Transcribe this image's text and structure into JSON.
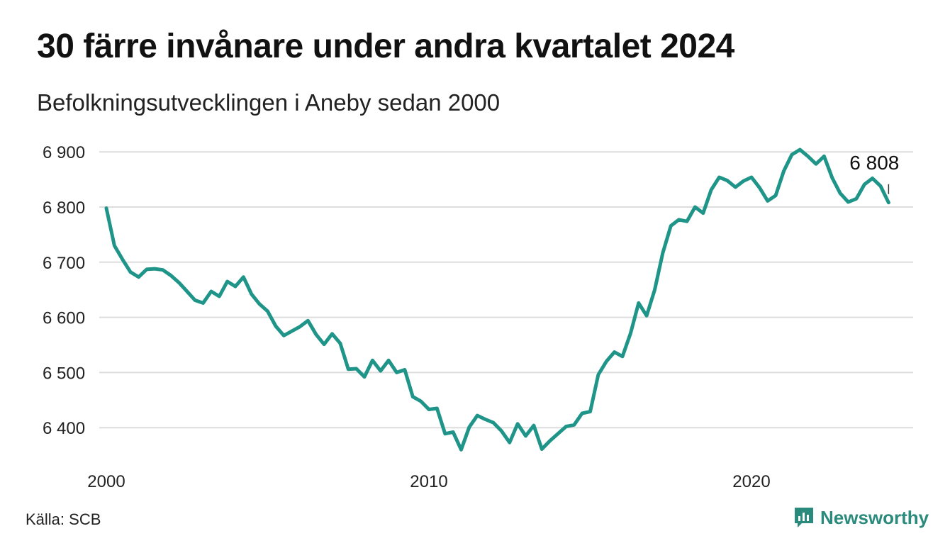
{
  "header": {
    "title": "30 färre invånare under andra kvartalet 2024",
    "subtitle": "Befolkningsutvecklingen i Aneby sedan 2000"
  },
  "footer": {
    "source": "Källa: SCB",
    "brand": "Newsworthy"
  },
  "colors": {
    "line": "#1f9488",
    "grid": "#dddddd",
    "brand": "#2a8a7c"
  },
  "chart_data": {
    "type": "line",
    "title": "30 färre invånare under andra kvartalet 2024",
    "subtitle": "Befolkningsutvecklingen i Aneby sedan 2000",
    "xlabel": "",
    "ylabel": "",
    "xlim": [
      2000,
      2024.25
    ],
    "ylim": [
      6345,
      6920
    ],
    "grid": true,
    "x_ticks": [
      2000,
      2010,
      2020
    ],
    "x_tick_labels": [
      "2000",
      "2010",
      "2020"
    ],
    "y_ticks": [
      6400,
      6500,
      6600,
      6700,
      6800,
      6900
    ],
    "y_tick_labels": [
      "6 400",
      "6 500",
      "6 600",
      "6 700",
      "6 800",
      "6 900"
    ],
    "end_label": "6 808",
    "series": [
      {
        "x": [
          2000,
          2000.25,
          2000.5,
          2000.75,
          2001,
          2001.25,
          2001.5,
          2001.75,
          2002,
          2002.25,
          2002.5,
          2002.75,
          2003,
          2003.25,
          2003.5,
          2003.75,
          2004,
          2004.25,
          2004.5,
          2004.75,
          2005,
          2005.25,
          2005.5,
          2005.75,
          2006,
          2006.25,
          2006.5,
          2006.75,
          2007,
          2007.25,
          2007.5,
          2007.75,
          2008,
          2008.25,
          2008.5,
          2008.75,
          2009,
          2009.25,
          2009.5,
          2009.75,
          2010,
          2010.25,
          2010.5,
          2010.75,
          2011,
          2011.25,
          2011.5,
          2011.75,
          2012,
          2012.25,
          2012.5,
          2012.75,
          2013,
          2013.25,
          2013.5,
          2013.75,
          2014,
          2014.25,
          2014.5,
          2014.75,
          2015,
          2015.25,
          2015.5,
          2015.75,
          2016,
          2016.25,
          2016.5,
          2016.75,
          2017,
          2017.25,
          2017.5,
          2017.75,
          2018,
          2018.25,
          2018.5,
          2018.75,
          2019,
          2019.25,
          2019.5,
          2019.75,
          2020,
          2020.25,
          2020.5,
          2020.75,
          2021,
          2021.25,
          2021.5,
          2021.75,
          2022,
          2022.25,
          2022.5,
          2022.75,
          2023,
          2023.25,
          2023.5,
          2023.75,
          2024,
          2024.25
        ],
        "values": [
          6798,
          6730,
          6705,
          6682,
          6673,
          6687,
          6688,
          6686,
          6676,
          6663,
          6647,
          6631,
          6626,
          6647,
          6638,
          6665,
          6656,
          6673,
          6642,
          6624,
          6611,
          6584,
          6567,
          6575,
          6583,
          6594,
          6569,
          6551,
          6570,
          6553,
          6506,
          6507,
          6492,
          6522,
          6503,
          6522,
          6500,
          6505,
          6456,
          6448,
          6433,
          6435,
          6389,
          6392,
          6360,
          6401,
          6422,
          6415,
          6409,
          6394,
          6373,
          6407,
          6385,
          6404,
          6361,
          6376,
          6389,
          6402,
          6405,
          6426,
          6429,
          6496,
          6520,
          6537,
          6529,
          6571,
          6626,
          6603,
          6650,
          6717,
          6766,
          6777,
          6774,
          6800,
          6789,
          6831,
          6854,
          6848,
          6836,
          6847,
          6854,
          6835,
          6811,
          6821,
          6865,
          6895,
          6904,
          6892,
          6878,
          6892,
          6853,
          6825,
          6809,
          6815,
          6841,
          6852,
          6838,
          6808
        ]
      }
    ]
  }
}
